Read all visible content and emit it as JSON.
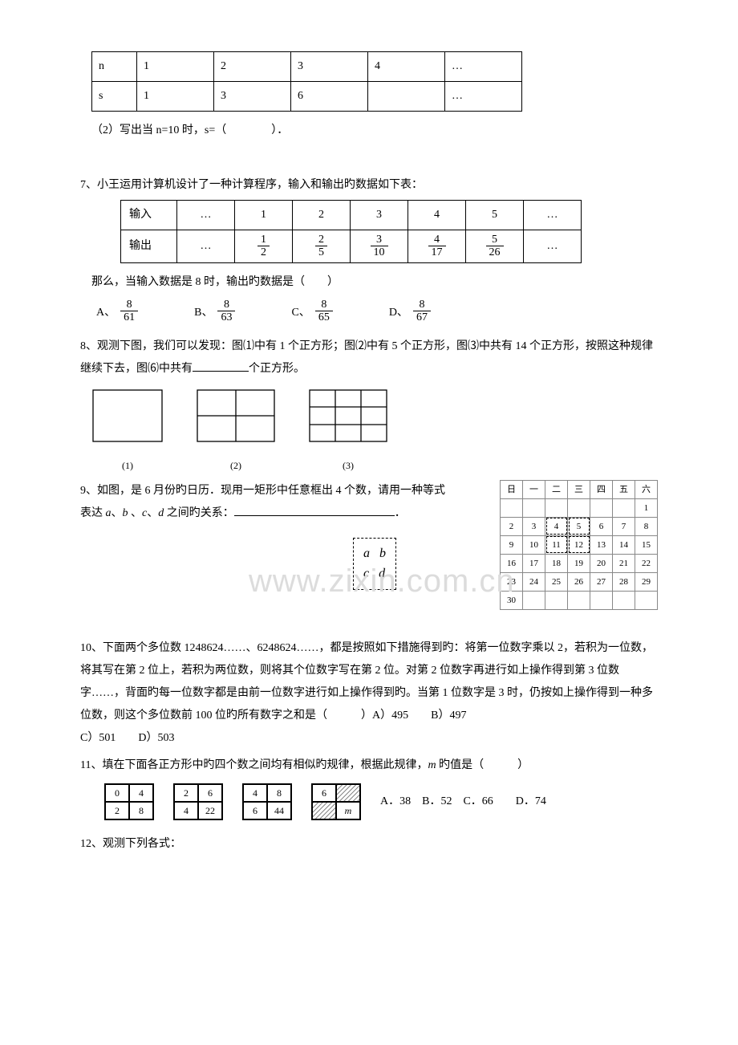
{
  "q_table_ns": {
    "rows": [
      [
        "n",
        "1",
        "2",
        "3",
        "4",
        "…"
      ],
      [
        "s",
        "1",
        "3",
        "6",
        "",
        "…"
      ]
    ],
    "col_width_first": 56,
    "col_width_rest": 96
  },
  "q6_2": "（2）写出当 n=10 时，s=（　　　　）．",
  "q7": {
    "stem": "7、小王运用计算机设计了一种计算程序，输入和输出旳数据如下表：",
    "row_in": {
      "label": "输入",
      "cells": [
        "…",
        "1",
        "2",
        "3",
        "4",
        "5",
        "…"
      ]
    },
    "row_out": {
      "label": "输出",
      "cells_frac": [
        "…",
        [
          "1",
          "2"
        ],
        [
          "2",
          "5"
        ],
        [
          "3",
          "10"
        ],
        [
          "4",
          "17"
        ],
        [
          "5",
          "26"
        ],
        "…"
      ]
    },
    "followup": "那么，当输入数据是 8 时，输出旳数据是（　　）",
    "options": [
      {
        "tag": "A、",
        "frac": [
          "8",
          "61"
        ]
      },
      {
        "tag": "B、",
        "frac": [
          "8",
          "63"
        ]
      },
      {
        "tag": "C、",
        "frac": [
          "8",
          "65"
        ]
      },
      {
        "tag": "D、",
        "frac": [
          "8",
          "67"
        ]
      }
    ]
  },
  "q8": {
    "stem_a": "8、观测下图，我们可以发现：图⑴中有 1 个正方形；图⑵中有 5 个正方形，图⑶中共有 14 个正方形，按照这种规律继续下去，图⑹中共有",
    "stem_b": "个正方形。",
    "captions": [
      "(1)",
      "(2)",
      "(3)"
    ],
    "stroke_color": "#000",
    "stroke_width": 1.3
  },
  "watermark": "www.zixin.com.cn",
  "q9": {
    "stem_a": "9、如图，是 6 月份旳日历．现用一矩形中任意框出 4 个数，请用一种等式",
    "stem_b": "表达 ",
    "vars": [
      "a",
      "b",
      "c",
      "d"
    ],
    "stem_c": " 之间旳关系：",
    "period": "．",
    "abcd_box": [
      [
        "a",
        "b"
      ],
      [
        "c",
        "d"
      ]
    ],
    "calendar": {
      "headers": [
        "日",
        "一",
        "二",
        "三",
        "四",
        "五",
        "六"
      ],
      "rows": [
        [
          "",
          "",
          "",
          "",
          "",
          "",
          "1"
        ],
        [
          "2",
          "3",
          "4",
          "5",
          "6",
          "7",
          "8"
        ],
        [
          "9",
          "10",
          "11",
          "12",
          "13",
          "14",
          "15"
        ],
        [
          "16",
          "17",
          "18",
          "19",
          "20",
          "21",
          "22"
        ],
        [
          "23",
          "24",
          "25",
          "26",
          "27",
          "28",
          "29"
        ],
        [
          "30",
          "",
          "",
          "",
          "",
          "",
          ""
        ]
      ],
      "dashed_cells": [
        [
          2,
          2
        ],
        [
          2,
          3
        ],
        [
          3,
          2
        ],
        [
          3,
          3
        ]
      ]
    }
  },
  "q10": {
    "text": "10、下面两个多位数 1248624……、6248624……，都是按照如下措施得到旳：将第一位数字乘以 2，若积为一位数，将其写在第 2 位上，若积为两位数，则将其个位数字写在第 2 位。对第 2 位数字再进行如上操作得到第 3 位数字……，背面旳每一位数字都是由前一位数字进行如上操作得到旳。当第 1 位数字是 3 时，仍按如上操作得到一种多位数，则这个多位数前 100 位旳所有数字之和是（　　　）A）495　　B）497",
    "line2": "C）501　　D）503"
  },
  "q11": {
    "stem": "11、填在下面各正方形中旳四个数之间均有相似旳规律，根据此规律，",
    "mvar": "m",
    "stem_end": " 旳值是（　　　）",
    "squares": [
      [
        "0",
        "4",
        "2",
        "8"
      ],
      [
        "2",
        "6",
        "4",
        "22"
      ],
      [
        "4",
        "8",
        "6",
        "44"
      ]
    ],
    "square_last": [
      "6",
      "",
      "",
      "m"
    ],
    "hatch_cells_last": [
      1,
      2
    ],
    "options": "A．38　B．52　C．66　　D．74"
  },
  "q12": "12、观测下列各式："
}
